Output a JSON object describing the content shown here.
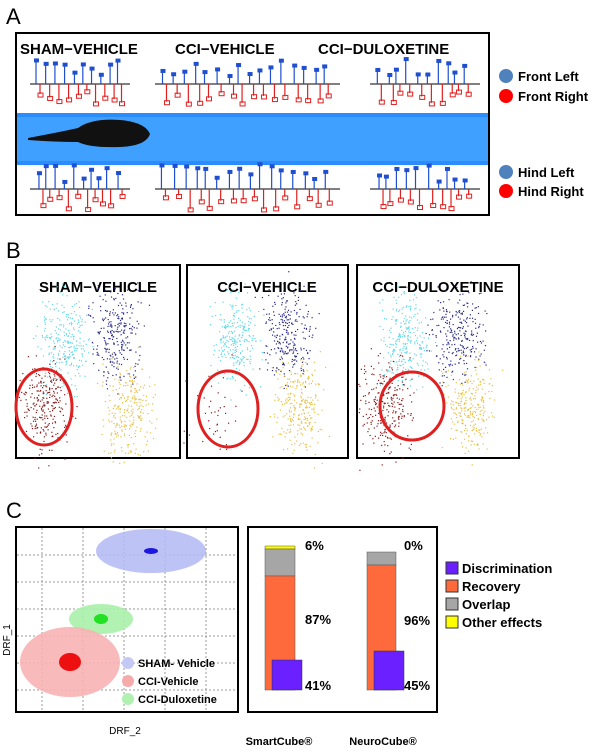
{
  "panel_a": {
    "label": "A",
    "groups": [
      "SHAM−VEHICLE",
      "CCI−VEHICLE",
      "CCI−DULOXETINE"
    ],
    "legend": [
      "Front Left",
      "Front Right",
      "Hind Left",
      "Hind Right"
    ]
  },
  "panel_b": {
    "label": "B",
    "groups": [
      "SHAM−VEHICLE",
      "CCI−VEHICLE",
      "CCI−DULOXETINE"
    ]
  },
  "panel_c": {
    "label": "C",
    "x_label": "DRF_2",
    "y_label": "DRF_1",
    "legend": [
      "SHAM- Vehicle",
      "CCI-Vehicle",
      "CCI-Duloxetine"
    ],
    "bars": {
      "categories": [
        "SmartCube®",
        "NeuroCube®"
      ],
      "labels": [
        [
          "6%",
          "87%",
          "41%"
        ],
        [
          "0%",
          "96%",
          "45%"
        ]
      ],
      "legend": [
        "Discrimination",
        "Recovery",
        "Overlap",
        "Other effects"
      ]
    }
  }
}
